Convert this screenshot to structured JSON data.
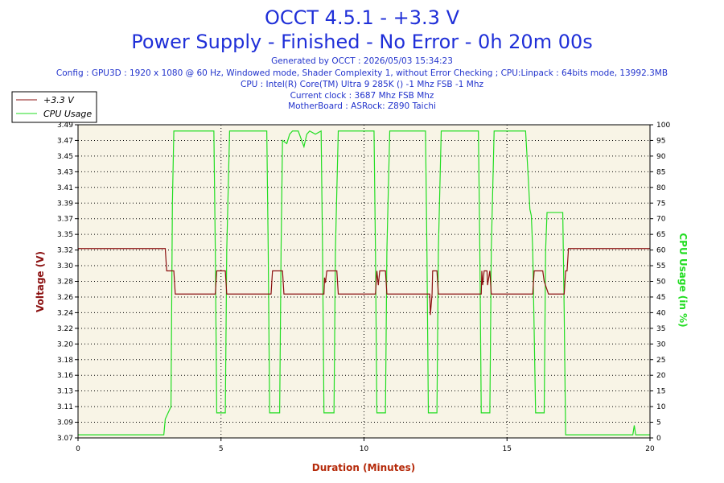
{
  "header": {
    "title_line1": "OCCT 4.5.1 - +3.3 V",
    "title_line2": "Power Supply - Finished - No Error - 0h 20m 00s",
    "info_lines": [
      "Generated by OCCT : 2026/05/03 15:34:23",
      "Config : GPU3D : 1920 x 1080 @ 60 Hz, Windowed mode, Shader Complexity 1, without Error Checking ; CPU:Linpack : 64bits mode, 13992.3MB",
      "CPU : Intel(R) Core(TM) Ultra 9 285K () -1 Mhz FSB -1 Mhz",
      "Current clock : 3687 Mhz FSB  Mhz",
      "MotherBoard : ASRock: Z890 Taichi"
    ]
  },
  "colors": {
    "voltage": "#8b1010",
    "cpu": "#22dd22",
    "plot_bg": "#f8f4e6",
    "title": "#1f2fd8",
    "xlabel": "#b52a0a"
  },
  "chart_data": {
    "type": "line",
    "xlabel": "Duration (Minutes)",
    "ylabel_left": "Voltage (V)",
    "ylabel_right": "CPU Usage (in %)",
    "xlim": [
      0,
      20
    ],
    "x_ticks": [
      "0",
      "5",
      "10",
      "15",
      "20"
    ],
    "ylim_left": [
      3.07,
      3.49
    ],
    "y_ticks_left": [
      "3.07",
      "3.09",
      "3.11",
      "3.13",
      "3.16",
      "3.18",
      "3.20",
      "3.22",
      "3.24",
      "3.26",
      "3.28",
      "3.30",
      "3.32",
      "3.35",
      "3.37",
      "3.39",
      "3.41",
      "3.43",
      "3.45",
      "3.47",
      "3.49"
    ],
    "ylim_right": [
      0,
      100
    ],
    "y_ticks_right": [
      "0",
      "5",
      "10",
      "15",
      "20",
      "25",
      "30",
      "35",
      "40",
      "45",
      "50",
      "55",
      "60",
      "65",
      "70",
      "75",
      "80",
      "85",
      "90",
      "95",
      "100"
    ],
    "grid": true,
    "legend_position": "top-left",
    "series": [
      {
        "name": "+3.3 V",
        "axis": "left",
        "x": [
          0,
          3.05,
          3.1,
          3.35,
          3.4,
          4.8,
          4.85,
          5.15,
          5.2,
          6.75,
          6.8,
          7.15,
          7.2,
          8.6,
          8.62,
          8.65,
          8.7,
          8.75,
          9.05,
          9.1,
          10.4,
          10.45,
          10.5,
          10.55,
          10.6,
          10.75,
          10.8,
          12.3,
          12.32,
          12.38,
          12.4,
          12.55,
          12.6,
          14.1,
          14.12,
          14.15,
          14.2,
          14.3,
          14.32,
          14.4,
          14.45,
          15.9,
          15.95,
          16.25,
          16.3,
          16.45,
          16.5,
          17.0,
          17.05,
          17.1,
          17.15,
          20
        ],
        "y": [
          3.324,
          3.324,
          3.294,
          3.294,
          3.263,
          3.263,
          3.294,
          3.294,
          3.263,
          3.263,
          3.294,
          3.294,
          3.263,
          3.263,
          3.285,
          3.278,
          3.294,
          3.294,
          3.294,
          3.263,
          3.263,
          3.294,
          3.275,
          3.294,
          3.294,
          3.294,
          3.263,
          3.263,
          3.235,
          3.263,
          3.294,
          3.294,
          3.263,
          3.263,
          3.294,
          3.275,
          3.294,
          3.294,
          3.275,
          3.294,
          3.263,
          3.263,
          3.294,
          3.294,
          3.28,
          3.263,
          3.263,
          3.263,
          3.294,
          3.294,
          3.324,
          3.324
        ]
      },
      {
        "name": "CPU Usage",
        "axis": "right",
        "x": [
          0,
          3.0,
          3.05,
          3.15,
          3.25,
          3.3,
          3.35,
          4.75,
          4.8,
          4.85,
          5.15,
          5.2,
          5.3,
          6.6,
          6.65,
          6.7,
          7.05,
          7.1,
          7.15,
          7.3,
          7.4,
          7.5,
          7.7,
          7.9,
          8.0,
          8.1,
          8.3,
          8.5,
          8.55,
          8.6,
          8.95,
          9.0,
          9.1,
          10.35,
          10.4,
          10.45,
          10.75,
          10.8,
          10.9,
          12.15,
          12.2,
          12.25,
          12.55,
          12.6,
          12.7,
          14.0,
          14.05,
          14.1,
          14.4,
          14.45,
          14.55,
          15.65,
          15.7,
          15.75,
          15.8,
          15.85,
          15.9,
          16.0,
          16.05,
          16.3,
          16.35,
          16.4,
          16.95,
          17.0,
          17.05,
          19.4,
          19.45,
          19.5,
          20
        ],
        "y": [
          1,
          1,
          6,
          8,
          10,
          75,
          98,
          98,
          60,
          8,
          8,
          60,
          98,
          98,
          60,
          8,
          8,
          60,
          95,
          94,
          97,
          98,
          98,
          93,
          97,
          98,
          97,
          98,
          60,
          8,
          8,
          60,
          98,
          98,
          60,
          8,
          8,
          60,
          98,
          98,
          60,
          8,
          8,
          60,
          98,
          98,
          60,
          8,
          8,
          60,
          98,
          98,
          90,
          82,
          73,
          71,
          60,
          8,
          8,
          8,
          60,
          72,
          72,
          40,
          1,
          1,
          4,
          1,
          1
        ]
      }
    ]
  }
}
